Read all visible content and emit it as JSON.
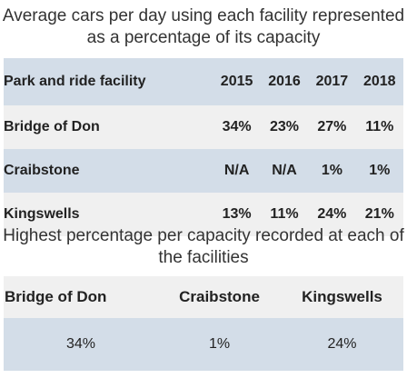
{
  "chart_data": {
    "type": "table",
    "title": "Average cars per day using each facility represented as a percentage of its capacity",
    "header": [
      "Park and ride facility",
      "2015",
      "2016",
      "2017",
      "2018"
    ],
    "rows": [
      {
        "facility": "Bridge of Don",
        "values": [
          "34%",
          "23%",
          "27%",
          "11%"
        ]
      },
      {
        "facility": "Craibstone",
        "values": [
          "N/A",
          "N/A",
          "1%",
          "1%"
        ]
      },
      {
        "facility": "Kingswells",
        "values": [
          "13%",
          "11%",
          "24%",
          "21%"
        ]
      }
    ],
    "summary": {
      "title": "Highest percentage per capacity recorded at each of the facilities",
      "facilities": [
        "Bridge of Don",
        "Craibstone",
        "Kingswells"
      ],
      "values": [
        "34%",
        "1%",
        "24%"
      ]
    }
  },
  "colors": {
    "band": "#d3dde8",
    "plain": "#f0f0f0"
  }
}
